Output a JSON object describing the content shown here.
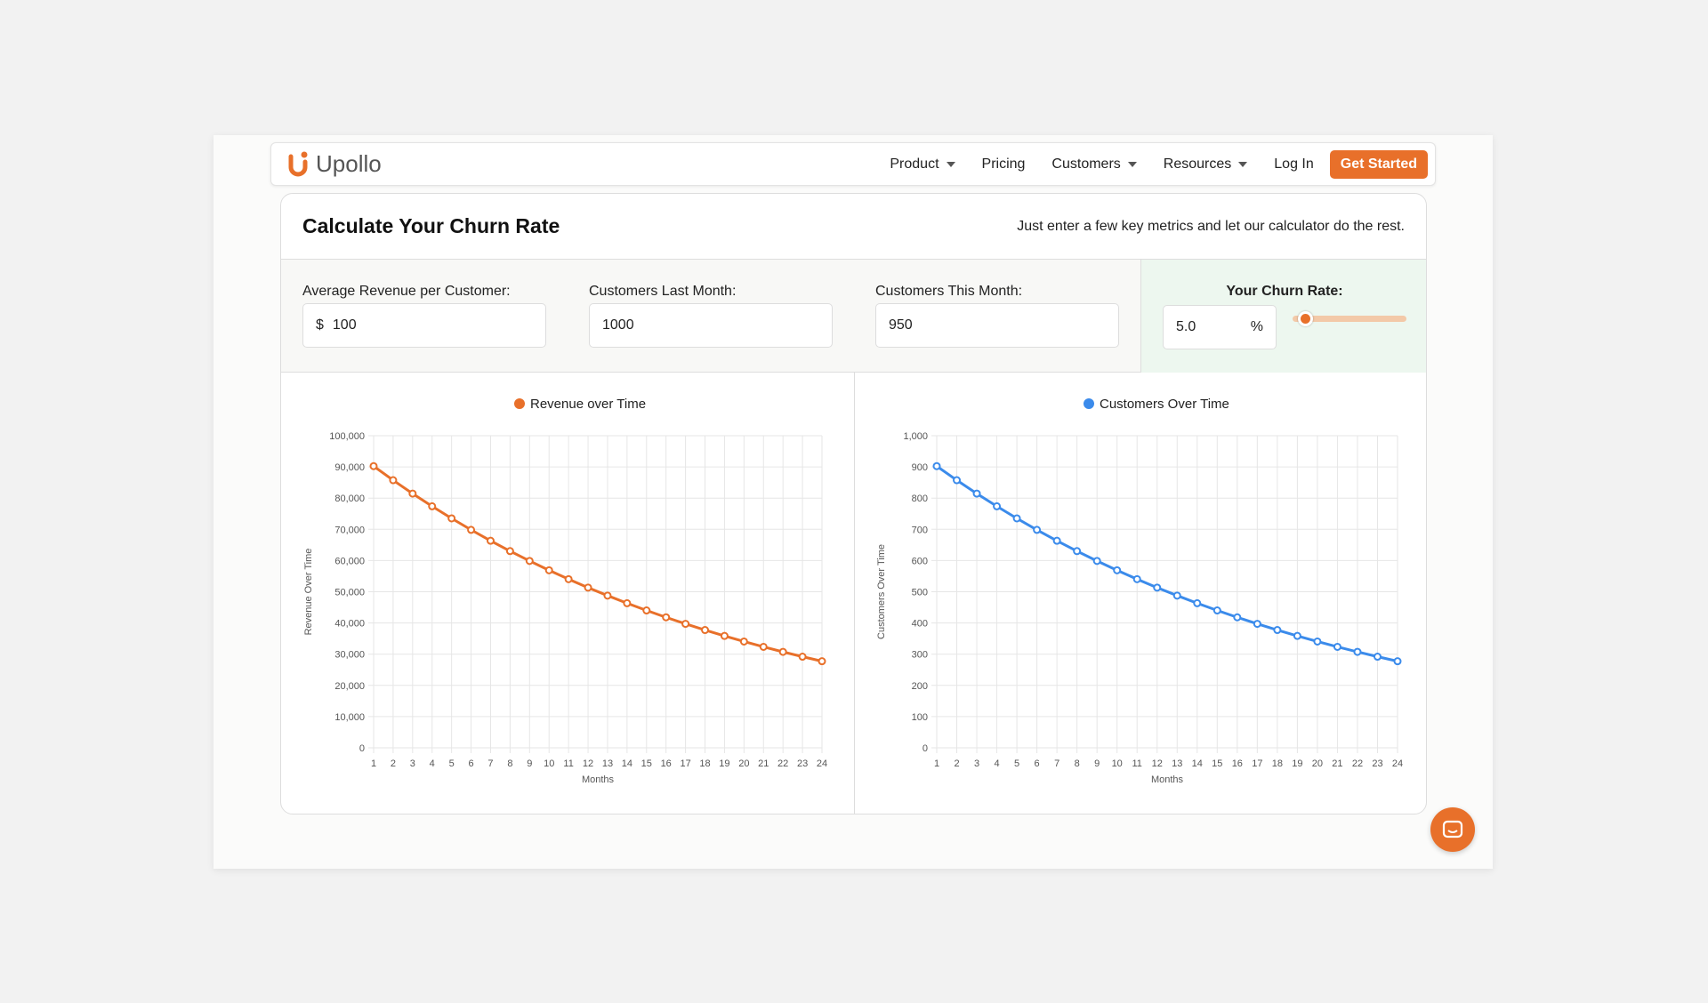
{
  "nav": {
    "brand": "Upollo",
    "items": [
      {
        "label": "Product",
        "dropdown": true
      },
      {
        "label": "Pricing",
        "dropdown": false
      },
      {
        "label": "Customers",
        "dropdown": true
      },
      {
        "label": "Resources",
        "dropdown": true
      },
      {
        "label": "Log In",
        "dropdown": false
      }
    ],
    "cta": "Get Started"
  },
  "calculator": {
    "title": "Calculate Your Churn Rate",
    "subtitle": "Just enter a few key metrics and let our calculator do the rest.",
    "fields": [
      {
        "label": "Average Revenue per Customer:",
        "prefix": "$",
        "value": "100"
      },
      {
        "label": "Customers Last Month:",
        "value": "1000"
      },
      {
        "label": "Customers This Month:",
        "value": "950"
      }
    ],
    "result": {
      "label": "Your Churn Rate:",
      "value": "5.0",
      "unit": "%",
      "slider_fraction": 0.05
    }
  },
  "colors": {
    "accent": "#e8702a",
    "blue": "#3b8beb"
  },
  "chart_data": [
    {
      "type": "line",
      "title": "Revenue over Time",
      "legend": "top",
      "xlabel": "Months",
      "ylabel": "Revenue Over Time",
      "ylim": [
        0,
        100000
      ],
      "yticks": [
        "0",
        "10,000",
        "20,000",
        "30,000",
        "40,000",
        "50,000",
        "60,000",
        "70,000",
        "80,000",
        "90,000",
        "100,000"
      ],
      "grid": true,
      "color": "#e8702a",
      "x": [
        1,
        2,
        3,
        4,
        5,
        6,
        7,
        8,
        9,
        10,
        11,
        12,
        13,
        14,
        15,
        16,
        17,
        18,
        19,
        20,
        21,
        22,
        23,
        24
      ],
      "series": [
        {
          "name": "Revenue over Time",
          "values": [
            90250,
            85738,
            81451,
            77378,
            73509,
            69834,
            66342,
            63025,
            59874,
            56880,
            54036,
            51334,
            48768,
            46329,
            44013,
            41812,
            39721,
            37735,
            35849,
            34056,
            32353,
            30736,
            29199,
            27739
          ]
        }
      ]
    },
    {
      "type": "line",
      "title": "Customers Over Time",
      "legend": "top",
      "xlabel": "Months",
      "ylabel": "Customers Over Time",
      "ylim": [
        0,
        1000
      ],
      "yticks": [
        "0",
        "100",
        "200",
        "300",
        "400",
        "500",
        "600",
        "700",
        "800",
        "900",
        "1,000"
      ],
      "grid": true,
      "color": "#3b8beb",
      "x": [
        1,
        2,
        3,
        4,
        5,
        6,
        7,
        8,
        9,
        10,
        11,
        12,
        13,
        14,
        15,
        16,
        17,
        18,
        19,
        20,
        21,
        22,
        23,
        24
      ],
      "series": [
        {
          "name": "Customers Over Time",
          "values": [
            902.5,
            857.4,
            814.5,
            773.8,
            735.1,
            698.3,
            663.4,
            630.2,
            598.7,
            568.8,
            540.4,
            513.3,
            487.7,
            463.3,
            440.1,
            418.1,
            397.2,
            377.4,
            358.5,
            340.6,
            323.5,
            307.4,
            292.0,
            277.4
          ]
        }
      ]
    }
  ]
}
